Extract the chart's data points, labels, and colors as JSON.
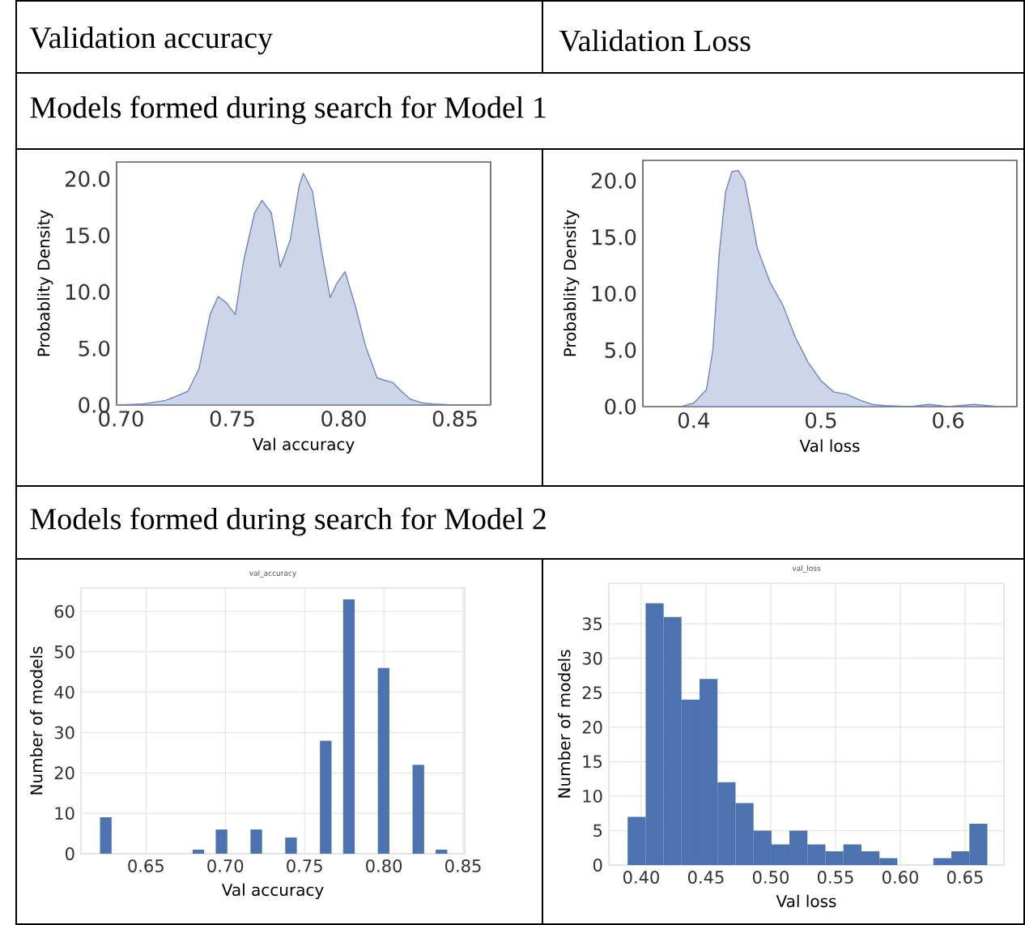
{
  "chart_data": [
    {
      "type": "area",
      "xlabel": "Val accuracy",
      "ylabel": "Probablity Density",
      "annotations": [
        "Validation accuracy",
        "Models formed during search for Model 1"
      ],
      "x": [
        0.698,
        0.71,
        0.72,
        0.725,
        0.73,
        0.735,
        0.74,
        0.7436,
        0.7475,
        0.7513,
        0.755,
        0.76,
        0.7633,
        0.7675,
        0.7715,
        0.776,
        0.78,
        0.7819,
        0.786,
        0.79,
        0.7939,
        0.797,
        0.8006,
        0.805,
        0.81,
        0.815,
        0.818,
        0.822,
        0.826,
        0.83,
        0.835,
        0.84,
        0.85,
        0.866
      ],
      "series": [
        {
          "color": "#6f86c0",
          "values": [
            0,
            0.1,
            0.4,
            0.8,
            1.2,
            3.2,
            8,
            9.6,
            9.0,
            8.0,
            12.7,
            17,
            18.1,
            17,
            12.2,
            14.6,
            19.4,
            20.5,
            18.9,
            13.7,
            9.5,
            10.8,
            11.8,
            8.9,
            5.1,
            2.4,
            2.2,
            2.0,
            1.2,
            0.5,
            0.2,
            0.1,
            0,
            0
          ]
        }
      ],
      "xlim": [
        0.698,
        0.866
      ],
      "ylim": [
        0,
        21.5
      ],
      "xticks": [
        {
          "value": 0.7,
          "label": "0.70"
        },
        0.75,
        {
          "value": 0.8,
          "label": "0.80"
        },
        0.85
      ],
      "yticks": [
        {
          "value": 0,
          "label": "0.0"
        },
        {
          "value": 5,
          "label": "5.0"
        },
        {
          "value": 10,
          "label": "10.0"
        },
        {
          "value": 15,
          "label": "15.0"
        },
        {
          "value": 20,
          "label": "20.0"
        }
      ]
    },
    {
      "type": "area",
      "xlabel": "Val loss",
      "ylabel": "Probablity Density",
      "annotations": [
        "Validation Loss"
      ],
      "x": [
        0.36,
        0.39,
        0.4,
        0.41,
        0.415,
        0.42,
        0.425,
        0.43,
        0.435,
        0.44,
        0.445,
        0.45,
        0.46,
        0.47,
        0.48,
        0.49,
        0.5,
        0.51,
        0.52,
        0.53,
        0.54,
        0.55,
        0.57,
        0.585,
        0.6,
        0.62,
        0.64,
        0.654
      ],
      "series": [
        {
          "color": "#6f86c0",
          "values": [
            0,
            0,
            0.3,
            1.5,
            5,
            13.5,
            19,
            20.8,
            20.9,
            20,
            17.1,
            14,
            11,
            9,
            6.1,
            3.9,
            2.3,
            1.3,
            1.1,
            0.6,
            0.2,
            0.1,
            0,
            0.2,
            0,
            0.2,
            0,
            0
          ]
        }
      ],
      "xlim": [
        0.36,
        0.654
      ],
      "ylim": [
        0,
        21.8
      ],
      "xticks": [
        0.4,
        0.5,
        0.6
      ],
      "yticks": [
        {
          "value": 0,
          "label": "0.0"
        },
        {
          "value": 5,
          "label": "5.0"
        },
        {
          "value": 10,
          "label": "10.0"
        },
        {
          "value": 15,
          "label": "15.0"
        },
        {
          "value": 20,
          "label": "20.0"
        }
      ]
    },
    {
      "type": "histogram",
      "title": "val_accuracy",
      "xlabel": "Val accuracy",
      "ylabel": "Number of models",
      "annotations": [
        "Models formed during search for Model 2"
      ],
      "bins": [
        0.621,
        0.6283,
        0.6356,
        0.6429,
        0.6502,
        0.6575,
        0.6648,
        0.6721,
        0.6794,
        0.6867,
        0.694,
        0.7013,
        0.7086,
        0.7159,
        0.7232,
        0.7305,
        0.7378,
        0.7451,
        0.7524,
        0.7597,
        0.767,
        0.7743,
        0.7816,
        0.7889,
        0.7962,
        0.8035,
        0.8108,
        0.8181,
        0.8254,
        0.8327,
        0.84
      ],
      "values": [
        9,
        0,
        0,
        0,
        0,
        0,
        0,
        0,
        1,
        0,
        6,
        0,
        0,
        6,
        0,
        0,
        4,
        0,
        0,
        28,
        0,
        63,
        0,
        0,
        46,
        0,
        0,
        22,
        0,
        1
      ],
      "color": "#4c72b0",
      "grid": true,
      "xlim": [
        0.609,
        0.851
      ],
      "ylim": [
        0,
        65.8
      ],
      "xticks": [
        0.65,
        {
          "value": 0.7,
          "label": "0.70"
        },
        0.75,
        {
          "value": 0.8,
          "label": "0.80"
        },
        0.85
      ],
      "yticks": [
        0,
        10,
        20,
        30,
        40,
        50,
        60
      ]
    },
    {
      "type": "histogram",
      "title": "val_loss",
      "xlabel": "Val loss",
      "ylabel": "Number of models",
      "bins": [
        0.3895,
        0.4034,
        0.4173,
        0.4311,
        0.445,
        0.4589,
        0.4728,
        0.4867,
        0.5006,
        0.5144,
        0.5283,
        0.5422,
        0.5561,
        0.57,
        0.5839,
        0.5977,
        0.6116,
        0.6255,
        0.6394,
        0.6533,
        0.6672
      ],
      "values": [
        7,
        38,
        36,
        24,
        27,
        12,
        9,
        5,
        3,
        5,
        3,
        2,
        3,
        2,
        1,
        0,
        0,
        1,
        2,
        6
      ],
      "color": "#4c72b0",
      "grid": true,
      "xlim": [
        0.375,
        0.68
      ],
      "ylim": [
        0,
        40.9
      ],
      "xticks": [
        {
          "value": 0.4,
          "label": "0.40"
        },
        0.45,
        {
          "value": 0.5,
          "label": "0.50"
        },
        0.55,
        {
          "value": 0.6,
          "label": "0.60"
        },
        0.65
      ],
      "yticks": [
        0,
        5,
        10,
        15,
        20,
        25,
        30,
        35
      ]
    }
  ]
}
